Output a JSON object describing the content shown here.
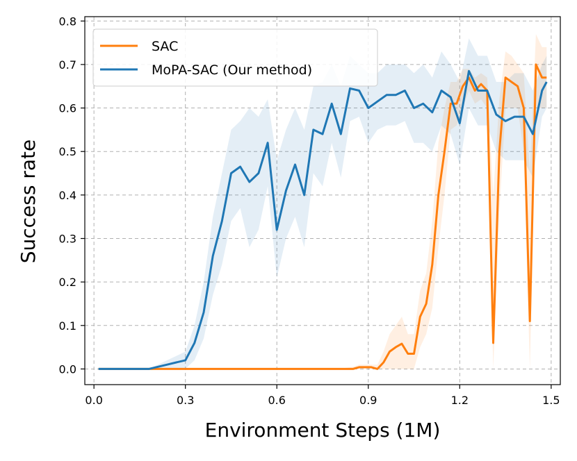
{
  "chart_data": {
    "type": "line",
    "title": "",
    "xlabel": "Environment Steps (1M)",
    "ylabel": "Success rate",
    "xlim": [
      -0.03,
      1.53
    ],
    "ylim": [
      -0.036,
      0.81
    ],
    "xticks": [
      0.0,
      0.3,
      0.6,
      0.9,
      1.2,
      1.5
    ],
    "xtick_labels": [
      "0.0",
      "0.3",
      "0.6",
      "0.9",
      "1.2",
      "1.5"
    ],
    "yticks": [
      0.0,
      0.1,
      0.2,
      0.3,
      0.4,
      0.5,
      0.6,
      0.7,
      0.8
    ],
    "ytick_labels": [
      "0.0",
      "0.1",
      "0.2",
      "0.3",
      "0.4",
      "0.5",
      "0.6",
      "0.7",
      "0.8"
    ],
    "grid": true,
    "legend_position": "top-left",
    "series": [
      {
        "name": "SAC",
        "color": "#ff7f0e",
        "x": [
          0.015,
          0.1,
          0.2,
          0.3,
          0.4,
          0.5,
          0.6,
          0.7,
          0.8,
          0.85,
          0.87,
          0.89,
          0.91,
          0.93,
          0.95,
          0.97,
          0.99,
          1.01,
          1.03,
          1.05,
          1.07,
          1.09,
          1.11,
          1.13,
          1.15,
          1.17,
          1.19,
          1.21,
          1.23,
          1.25,
          1.27,
          1.29,
          1.31,
          1.33,
          1.35,
          1.37,
          1.39,
          1.41,
          1.43,
          1.45,
          1.47,
          1.485
        ],
        "y": [
          0.0,
          0.0,
          0.0,
          0.0,
          0.0,
          0.0,
          0.0,
          0.0,
          0.0,
          0.0,
          0.004,
          0.004,
          0.004,
          0.0,
          0.015,
          0.04,
          0.05,
          0.058,
          0.035,
          0.035,
          0.12,
          0.15,
          0.24,
          0.4,
          0.5,
          0.61,
          0.61,
          0.65,
          0.67,
          0.64,
          0.655,
          0.64,
          0.06,
          0.5,
          0.67,
          0.66,
          0.65,
          0.6,
          0.11,
          0.7,
          0.67,
          0.67
        ],
        "band_upper": [
          0.0,
          0.0,
          0.0,
          0.0,
          0.0,
          0.0,
          0.0,
          0.0,
          0.0,
          0.005,
          0.01,
          0.01,
          0.01,
          0.01,
          0.04,
          0.08,
          0.1,
          0.12,
          0.08,
          0.08,
          0.18,
          0.22,
          0.34,
          0.52,
          0.6,
          0.66,
          0.66,
          0.69,
          0.69,
          0.67,
          0.68,
          0.67,
          0.4,
          0.62,
          0.73,
          0.72,
          0.7,
          0.68,
          0.45,
          0.77,
          0.74,
          0.74
        ],
        "band_lower": [
          0.0,
          0.0,
          0.0,
          0.0,
          0.0,
          0.0,
          0.0,
          0.0,
          0.0,
          0.0,
          0.0,
          0.0,
          0.0,
          0.0,
          0.0,
          0.0,
          0.0,
          0.0,
          0.0,
          0.0,
          0.05,
          0.08,
          0.14,
          0.28,
          0.4,
          0.55,
          0.56,
          0.6,
          0.64,
          0.61,
          0.62,
          0.6,
          0.0,
          0.36,
          0.6,
          0.6,
          0.6,
          0.5,
          0.0,
          0.6,
          0.6,
          0.6
        ]
      },
      {
        "name": "MoPA-SAC (Our method)",
        "color": "#1f77b4",
        "x": [
          0.015,
          0.1,
          0.15,
          0.18,
          0.21,
          0.24,
          0.27,
          0.3,
          0.33,
          0.36,
          0.39,
          0.42,
          0.45,
          0.48,
          0.51,
          0.54,
          0.57,
          0.6,
          0.63,
          0.66,
          0.69,
          0.72,
          0.75,
          0.78,
          0.81,
          0.84,
          0.87,
          0.9,
          0.93,
          0.96,
          0.99,
          1.02,
          1.05,
          1.08,
          1.11,
          1.14,
          1.17,
          1.2,
          1.23,
          1.26,
          1.29,
          1.32,
          1.35,
          1.38,
          1.41,
          1.44,
          1.47,
          1.485
        ],
        "y": [
          0.0,
          0.0,
          0.0,
          0.0,
          0.005,
          0.01,
          0.015,
          0.02,
          0.06,
          0.13,
          0.26,
          0.34,
          0.45,
          0.465,
          0.43,
          0.45,
          0.52,
          0.32,
          0.41,
          0.47,
          0.4,
          0.55,
          0.54,
          0.61,
          0.54,
          0.645,
          0.64,
          0.6,
          0.615,
          0.63,
          0.63,
          0.64,
          0.6,
          0.61,
          0.59,
          0.64,
          0.625,
          0.565,
          0.685,
          0.64,
          0.64,
          0.585,
          0.57,
          0.58,
          0.58,
          0.54,
          0.64,
          0.66
        ],
        "band_upper": [
          0.0,
          0.0,
          0.0,
          0.0,
          0.01,
          0.02,
          0.03,
          0.04,
          0.1,
          0.2,
          0.35,
          0.45,
          0.55,
          0.57,
          0.6,
          0.58,
          0.62,
          0.48,
          0.55,
          0.6,
          0.55,
          0.65,
          0.66,
          0.7,
          0.65,
          0.72,
          0.7,
          0.68,
          0.68,
          0.7,
          0.7,
          0.7,
          0.68,
          0.7,
          0.67,
          0.73,
          0.7,
          0.66,
          0.76,
          0.72,
          0.72,
          0.66,
          0.66,
          0.68,
          0.68,
          0.64,
          0.7,
          0.72
        ],
        "band_lower": [
          0.0,
          0.0,
          0.0,
          0.0,
          0.0,
          0.0,
          0.0,
          0.0,
          0.02,
          0.07,
          0.17,
          0.24,
          0.34,
          0.37,
          0.28,
          0.32,
          0.42,
          0.21,
          0.3,
          0.35,
          0.28,
          0.45,
          0.42,
          0.52,
          0.44,
          0.57,
          0.58,
          0.52,
          0.55,
          0.56,
          0.56,
          0.57,
          0.52,
          0.52,
          0.5,
          0.56,
          0.54,
          0.47,
          0.6,
          0.56,
          0.56,
          0.5,
          0.48,
          0.48,
          0.48,
          0.44,
          0.58,
          0.6
        ]
      }
    ]
  }
}
